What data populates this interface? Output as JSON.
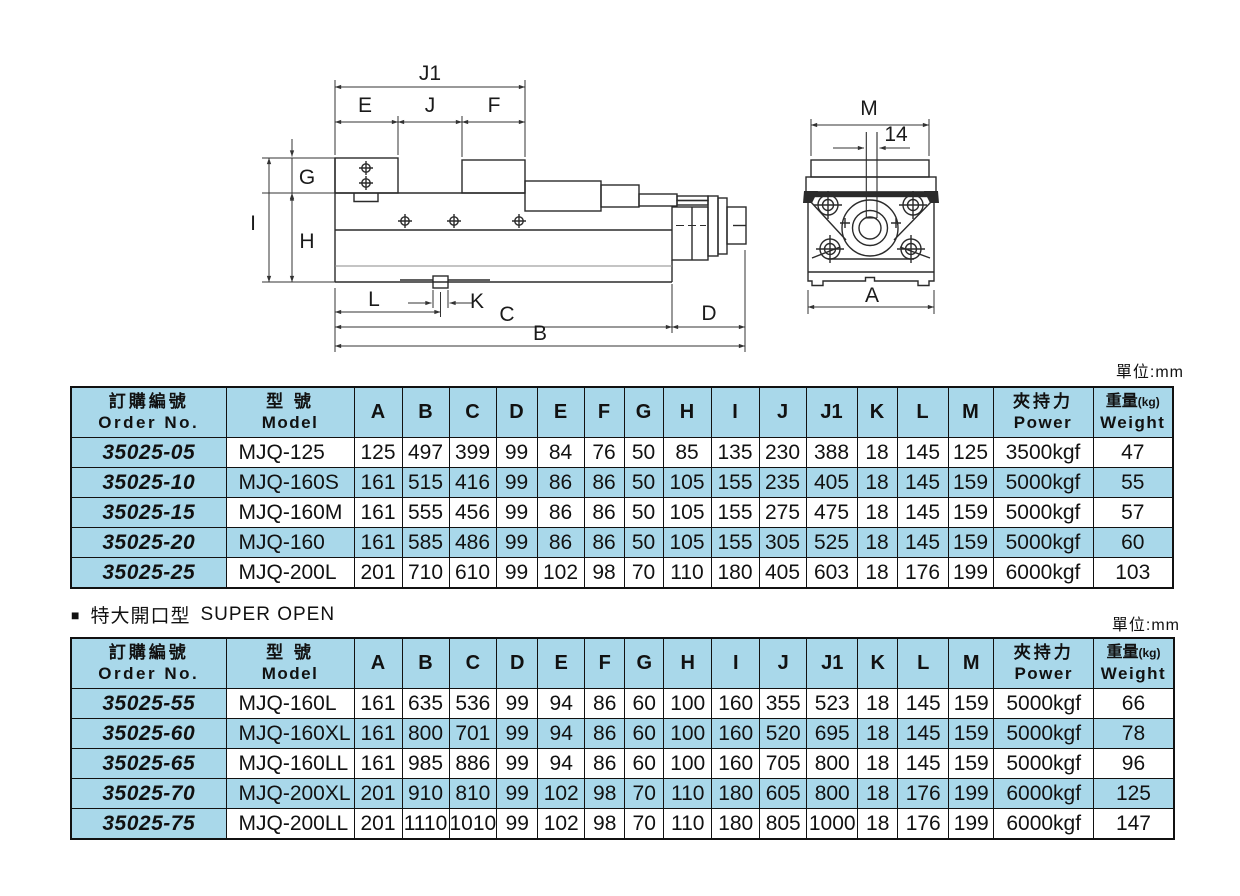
{
  "page": {
    "unit_label": "單位:mm",
    "section": {
      "marker": "■",
      "title_cn": "特大開口型",
      "title_en": "SUPER OPEN"
    }
  },
  "drawing": {
    "labels": {
      "j1": "J1",
      "e": "E",
      "j": "J",
      "f": "F",
      "g": "G",
      "i": "I",
      "h": "H",
      "l": "L",
      "k": "K",
      "c": "C",
      "d": "D",
      "b": "B",
      "m": "M",
      "slot_width": "14",
      "a": "A"
    }
  },
  "headers": {
    "order_cn": "訂購編號",
    "order_en": "Order No.",
    "model_cn": "型 號",
    "model_en": "Model",
    "dims": [
      "A",
      "B",
      "C",
      "D",
      "E",
      "F",
      "G",
      "H",
      "I",
      "J",
      "J1",
      "K",
      "L",
      "M"
    ],
    "power_cn": "夾持力",
    "power_en": "Power",
    "weight_cn": "重量",
    "weight_unit": "(kg)",
    "weight_en": "Weight"
  },
  "table1": {
    "rows": [
      {
        "order": "35025-05",
        "model": "MJQ-125",
        "values": [
          125,
          497,
          399,
          99,
          84,
          76,
          50,
          85,
          135,
          230,
          388,
          18,
          145,
          125
        ],
        "power": "3500kgf",
        "weight": "47"
      },
      {
        "order": "35025-10",
        "model": "MJQ-160S",
        "values": [
          161,
          515,
          416,
          99,
          86,
          86,
          50,
          105,
          155,
          235,
          405,
          18,
          145,
          159
        ],
        "power": "5000kgf",
        "weight": "55"
      },
      {
        "order": "35025-15",
        "model": "MJQ-160M",
        "values": [
          161,
          555,
          456,
          99,
          86,
          86,
          50,
          105,
          155,
          275,
          475,
          18,
          145,
          159
        ],
        "power": "5000kgf",
        "weight": "57"
      },
      {
        "order": "35025-20",
        "model": "MJQ-160",
        "values": [
          161,
          585,
          486,
          99,
          86,
          86,
          50,
          105,
          155,
          305,
          525,
          18,
          145,
          159
        ],
        "power": "5000kgf",
        "weight": "60"
      },
      {
        "order": "35025-25",
        "model": "MJQ-200L",
        "values": [
          201,
          710,
          610,
          99,
          102,
          98,
          70,
          110,
          180,
          405,
          603,
          18,
          176,
          199
        ],
        "power": "6000kgf",
        "weight": "103"
      }
    ]
  },
  "table2": {
    "rows": [
      {
        "order": "35025-55",
        "model": "MJQ-160L",
        "values": [
          161,
          635,
          536,
          99,
          94,
          86,
          60,
          100,
          160,
          355,
          523,
          18,
          145,
          159
        ],
        "power": "5000kgf",
        "weight": "66"
      },
      {
        "order": "35025-60",
        "model": "MJQ-160XL",
        "values": [
          161,
          800,
          701,
          99,
          94,
          86,
          60,
          100,
          160,
          520,
          695,
          18,
          145,
          159
        ],
        "power": "5000kgf",
        "weight": "78"
      },
      {
        "order": "35025-65",
        "model": "MJQ-160LL",
        "values": [
          161,
          985,
          886,
          99,
          94,
          86,
          60,
          100,
          160,
          705,
          800,
          18,
          145,
          159
        ],
        "power": "5000kgf",
        "weight": "96"
      },
      {
        "order": "35025-70",
        "model": "MJQ-200XL",
        "values": [
          201,
          910,
          810,
          99,
          102,
          98,
          70,
          110,
          180,
          605,
          800,
          18,
          176,
          199
        ],
        "power": "6000kgf",
        "weight": "125"
      },
      {
        "order": "35025-75",
        "model": "MJQ-200LL",
        "values": [
          201,
          1110,
          1010,
          99,
          102,
          98,
          70,
          110,
          180,
          805,
          1000,
          18,
          176,
          199
        ],
        "power": "6000kgf",
        "weight": "147"
      }
    ]
  },
  "colors": {
    "header_blue": "#a9d8ea",
    "border": "#111111",
    "line": "#2b2b2b"
  }
}
